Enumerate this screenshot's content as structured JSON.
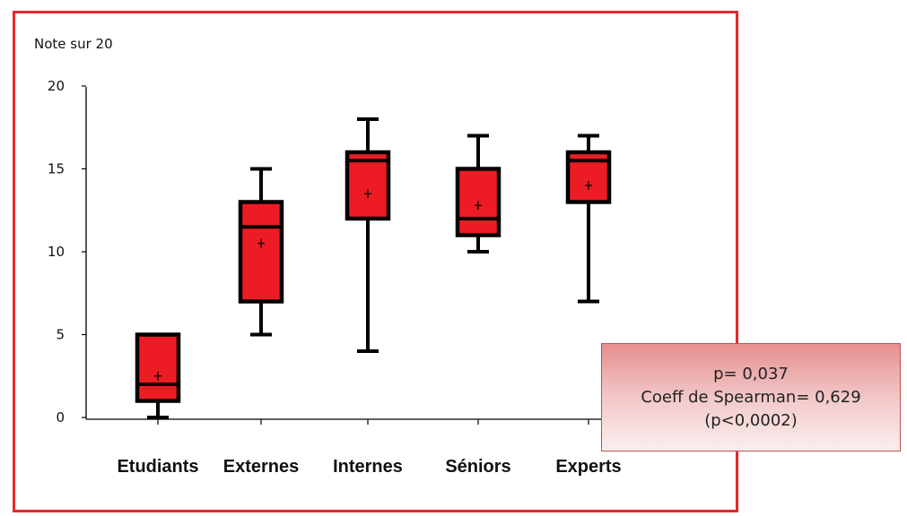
{
  "chart_data": {
    "type": "boxplot",
    "ylabel": "Note sur 20",
    "ylim": [
      0,
      20
    ],
    "yticks": [
      0,
      5,
      10,
      15,
      20
    ],
    "categories": [
      "Etudiants",
      "Externes",
      "Internes",
      "Séniors",
      "Experts"
    ],
    "boxes": [
      {
        "min": 0,
        "q1": 1,
        "median": 2,
        "q3": 5,
        "max": 5,
        "mean": 2.5
      },
      {
        "min": 5,
        "q1": 7,
        "median": 11.5,
        "q3": 13,
        "max": 15,
        "mean": 10.5
      },
      {
        "min": 4,
        "q1": 12,
        "median": 15.5,
        "q3": 16,
        "max": 18,
        "mean": 13.5
      },
      {
        "min": 10,
        "q1": 11,
        "median": 12,
        "q3": 15,
        "max": 17,
        "mean": 12.8
      },
      {
        "min": 7,
        "q1": 13,
        "median": 15.5,
        "q3": 16,
        "max": 17,
        "mean": 14
      }
    ],
    "colors": {
      "box_fill": "#ed1c24",
      "stroke": "#000000",
      "frame": "#e8262d"
    },
    "legend": "none",
    "grid": false
  },
  "stats": {
    "line1": "p= 0,037",
    "line2": "Coeff de Spearman= 0,629",
    "line3": "(p<0,0002)"
  }
}
